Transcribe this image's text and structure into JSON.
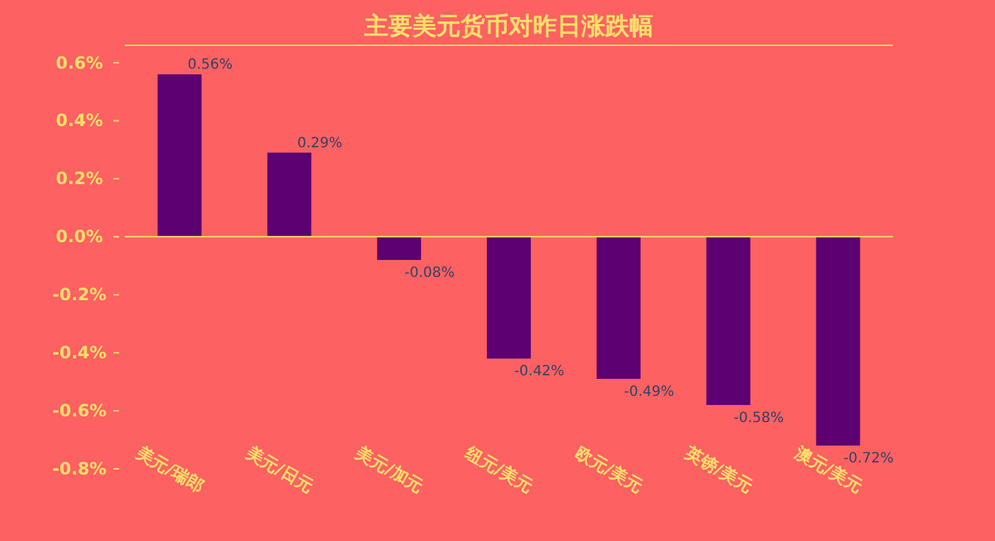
{
  "chart_data": {
    "type": "bar",
    "title": "主要美元货币对昨日涨跌幅",
    "categories": [
      "美元/瑞郎",
      "美元/日元",
      "美元/加元",
      "纽元/美元",
      "欧元/美元",
      "英镑/美元",
      "澳元/美元"
    ],
    "values": [
      0.56,
      0.29,
      -0.08,
      -0.42,
      -0.49,
      -0.58,
      -0.72
    ],
    "value_labels": [
      "0.56%",
      "0.29%",
      "-0.08%",
      "-0.42%",
      "-0.49%",
      "-0.58%",
      "-0.72%"
    ],
    "color": "#5c0072",
    "ylim": [
      -0.8,
      0.66
    ],
    "yticks": [
      {
        "value": -0.8,
        "label": "-0.8%"
      },
      {
        "value": -0.6,
        "label": "-0.6%"
      },
      {
        "value": -0.4,
        "label": "-0.4%"
      },
      {
        "value": -0.2,
        "label": "-0.2%"
      },
      {
        "value": 0,
        "label": "0.0%"
      },
      {
        "value": 0.2,
        "label": "0.2%"
      },
      {
        "value": 0.4,
        "label": "0.4%"
      },
      {
        "value": 0.6,
        "label": "0.6%"
      }
    ],
    "ref_lines": [
      {
        "axis": "y",
        "value": 0,
        "color": "#ffdf6b"
      }
    ],
    "grid": false
  }
}
